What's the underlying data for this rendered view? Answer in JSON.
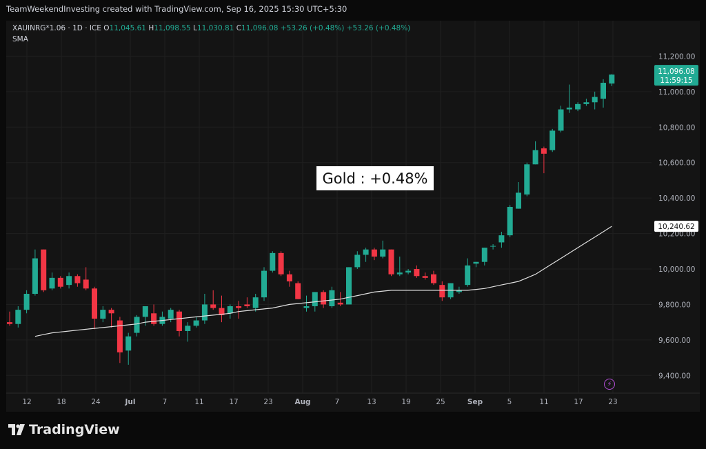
{
  "header": {
    "credit": "TeamWeekendInvesting created with TradingView.com, Sep 16, 2025 15:30 UTC+5:30"
  },
  "legend": {
    "symbol": "XAUINRG*1.06 · 1D · ICE",
    "o_label": "O",
    "o_value": "11,045.61",
    "h_label": "H",
    "h_value": "11,098.55",
    "l_label": "L",
    "l_value": "11,030.81",
    "c_label": "C",
    "c_value": "11,096.08",
    "change": "+53.26 (+0.48%)",
    "change2": "+53.26 (+0.48%)",
    "indicator": "SMA"
  },
  "annotation": {
    "text": "Gold : +0.48%"
  },
  "price_badge": {
    "price": "11,096.08",
    "countdown": "11:59:15"
  },
  "sma_badge": {
    "value": "10,240.62"
  },
  "footer": {
    "brand": "TradingView"
  },
  "chart_data": {
    "type": "candlestick",
    "colors": {
      "up": "#22ab94",
      "down": "#f23645",
      "sma": "#e0e0e0",
      "background": "#141414",
      "grid": "#1f1f1f"
    },
    "ylim": [
      9300,
      11400
    ],
    "y_ticks": [
      "9,400.00",
      "9,600.00",
      "9,800.00",
      "10,000.00",
      "10,200.00",
      "10,400.00",
      "10,600.00",
      "10,800.00",
      "11,000.00",
      "11,200.00"
    ],
    "x_ticks": [
      "12",
      "18",
      "24",
      "Jul",
      "7",
      "11",
      "17",
      "23",
      "Aug",
      "7",
      "13",
      "19",
      "25",
      "Sep",
      "5",
      "11",
      "17",
      "23"
    ],
    "candles": [
      {
        "o": 9700,
        "h": 9760,
        "l": 9680,
        "c": 9690
      },
      {
        "o": 9690,
        "h": 9790,
        "l": 9670,
        "c": 9770
      },
      {
        "o": 9770,
        "h": 9880,
        "l": 9750,
        "c": 9860
      },
      {
        "o": 9860,
        "h": 10110,
        "l": 9850,
        "c": 10060
      },
      {
        "o": 10110,
        "h": 10110,
        "l": 9870,
        "c": 9880
      },
      {
        "o": 9890,
        "h": 9980,
        "l": 9880,
        "c": 9950
      },
      {
        "o": 9950,
        "h": 9960,
        "l": 9890,
        "c": 9900
      },
      {
        "o": 9910,
        "h": 9980,
        "l": 9890,
        "c": 9960
      },
      {
        "o": 9960,
        "h": 9970,
        "l": 9900,
        "c": 9920
      },
      {
        "o": 9940,
        "h": 10010,
        "l": 9880,
        "c": 9890
      },
      {
        "o": 9890,
        "h": 9900,
        "l": 9660,
        "c": 9720
      },
      {
        "o": 9720,
        "h": 9790,
        "l": 9700,
        "c": 9770
      },
      {
        "o": 9770,
        "h": 9780,
        "l": 9670,
        "c": 9750
      },
      {
        "o": 9710,
        "h": 9730,
        "l": 9470,
        "c": 9530
      },
      {
        "o": 9540,
        "h": 9640,
        "l": 9460,
        "c": 9620
      },
      {
        "o": 9640,
        "h": 9740,
        "l": 9620,
        "c": 9730
      },
      {
        "o": 9730,
        "h": 9790,
        "l": 9680,
        "c": 9790
      },
      {
        "o": 9750,
        "h": 9800,
        "l": 9680,
        "c": 9690
      },
      {
        "o": 9690,
        "h": 9760,
        "l": 9680,
        "c": 9730
      },
      {
        "o": 9720,
        "h": 9780,
        "l": 9700,
        "c": 9770
      },
      {
        "o": 9760,
        "h": 9770,
        "l": 9620,
        "c": 9650
      },
      {
        "o": 9650,
        "h": 9700,
        "l": 9590,
        "c": 9680
      },
      {
        "o": 9680,
        "h": 9730,
        "l": 9670,
        "c": 9710
      },
      {
        "o": 9710,
        "h": 9860,
        "l": 9690,
        "c": 9800
      },
      {
        "o": 9800,
        "h": 9880,
        "l": 9770,
        "c": 9780
      },
      {
        "o": 9780,
        "h": 9850,
        "l": 9700,
        "c": 9740
      },
      {
        "o": 9750,
        "h": 9800,
        "l": 9720,
        "c": 9790
      },
      {
        "o": 9790,
        "h": 9820,
        "l": 9720,
        "c": 9780
      },
      {
        "o": 9800,
        "h": 9840,
        "l": 9780,
        "c": 9790
      },
      {
        "o": 9780,
        "h": 9860,
        "l": 9760,
        "c": 9840
      },
      {
        "o": 9840,
        "h": 10010,
        "l": 9820,
        "c": 9990
      },
      {
        "o": 9990,
        "h": 10100,
        "l": 9980,
        "c": 10090
      },
      {
        "o": 10090,
        "h": 10100,
        "l": 9960,
        "c": 9970
      },
      {
        "o": 9970,
        "h": 9990,
        "l": 9900,
        "c": 9930
      },
      {
        "o": 9920,
        "h": 9930,
        "l": 9830,
        "c": 9830
      },
      {
        "o": 9780,
        "h": 9850,
        "l": 9760,
        "c": 9790
      },
      {
        "o": 9790,
        "h": 9870,
        "l": 9760,
        "c": 9870
      },
      {
        "o": 9870,
        "h": 9880,
        "l": 9780,
        "c": 9800
      },
      {
        "o": 9790,
        "h": 9900,
        "l": 9780,
        "c": 9880
      },
      {
        "o": 9810,
        "h": 9870,
        "l": 9790,
        "c": 9800
      },
      {
        "o": 9800,
        "h": 10010,
        "l": 9800,
        "c": 10010
      },
      {
        "o": 10010,
        "h": 10100,
        "l": 10000,
        "c": 10080
      },
      {
        "o": 10080,
        "h": 10120,
        "l": 10040,
        "c": 10110
      },
      {
        "o": 10110,
        "h": 10120,
        "l": 10050,
        "c": 10070
      },
      {
        "o": 10070,
        "h": 10160,
        "l": 10060,
        "c": 10110
      },
      {
        "o": 10110,
        "h": 10110,
        "l": 9960,
        "c": 9970
      },
      {
        "o": 9970,
        "h": 10070,
        "l": 9960,
        "c": 9980
      },
      {
        "o": 9980,
        "h": 10000,
        "l": 9970,
        "c": 9990
      },
      {
        "o": 10000,
        "h": 10020,
        "l": 9950,
        "c": 9960
      },
      {
        "o": 9960,
        "h": 9980,
        "l": 9940,
        "c": 9950
      },
      {
        "o": 9970,
        "h": 9990,
        "l": 9910,
        "c": 9920
      },
      {
        "o": 9910,
        "h": 9930,
        "l": 9820,
        "c": 9840
      },
      {
        "o": 9840,
        "h": 9920,
        "l": 9830,
        "c": 9920
      },
      {
        "o": 9870,
        "h": 9900,
        "l": 9860,
        "c": 9880
      },
      {
        "o": 9910,
        "h": 10060,
        "l": 9900,
        "c": 10020
      },
      {
        "o": 10030,
        "h": 10040,
        "l": 10010,
        "c": 10040
      },
      {
        "o": 10040,
        "h": 10120,
        "l": 10020,
        "c": 10120
      },
      {
        "o": 10130,
        "h": 10140,
        "l": 10110,
        "c": 10130
      },
      {
        "o": 10150,
        "h": 10210,
        "l": 10120,
        "c": 10190
      },
      {
        "o": 10190,
        "h": 10360,
        "l": 10180,
        "c": 10350
      },
      {
        "o": 10340,
        "h": 10490,
        "l": 10340,
        "c": 10430
      },
      {
        "o": 10420,
        "h": 10600,
        "l": 10410,
        "c": 10590
      },
      {
        "o": 10590,
        "h": 10720,
        "l": 10590,
        "c": 10670
      },
      {
        "o": 10680,
        "h": 10690,
        "l": 10540,
        "c": 10650
      },
      {
        "o": 10670,
        "h": 10790,
        "l": 10660,
        "c": 10780
      },
      {
        "o": 10780,
        "h": 10920,
        "l": 10770,
        "c": 10900
      },
      {
        "o": 10900,
        "h": 11040,
        "l": 10880,
        "c": 10910
      },
      {
        "o": 10900,
        "h": 10940,
        "l": 10890,
        "c": 10930
      },
      {
        "o": 10930,
        "h": 10960,
        "l": 10920,
        "c": 10940
      },
      {
        "o": 10940,
        "h": 11000,
        "l": 10900,
        "c": 10970
      },
      {
        "o": 10960,
        "h": 11070,
        "l": 10910,
        "c": 11050
      },
      {
        "o": 11045.61,
        "h": 11098.55,
        "l": 11030.81,
        "c": 11096.08
      }
    ],
    "sma": [
      9620,
      9630,
      9640,
      9645,
      9650,
      9655,
      9660,
      9665,
      9670,
      9675,
      9680,
      9685,
      9690,
      9700,
      9705,
      9710,
      9715,
      9720,
      9725,
      9730,
      9735,
      9740,
      9745,
      9750,
      9760,
      9765,
      9770,
      9775,
      9780,
      9790,
      9800,
      9805,
      9810,
      9815,
      9820,
      9825,
      9830,
      9840,
      9850,
      9860,
      9870,
      9875,
      9880,
      9880,
      9880,
      9880,
      9880,
      9880,
      9880,
      9880,
      9880,
      9880,
      9885,
      9890,
      9900,
      9910,
      9920,
      9930,
      9950,
      9970,
      10000,
      10030,
      10060,
      10090,
      10120,
      10150,
      10180,
      10210,
      10240.62
    ]
  }
}
